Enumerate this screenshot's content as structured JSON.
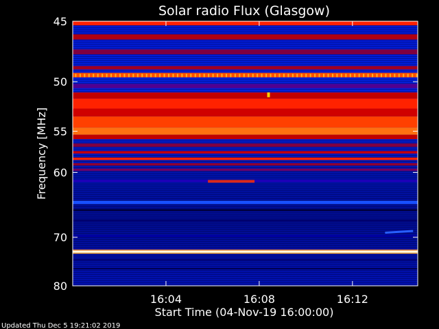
{
  "chart_data": {
    "type": "heatmap",
    "title": "Solar radio Flux (Glasgow)",
    "ylabel": "Frequency [MHz]",
    "xlabel": "Start Time (04-Nov-19 16:00:00)",
    "x_unit": "minutes after 16:00",
    "xlim": [
      0,
      14.8
    ],
    "ylim": [
      80,
      45
    ],
    "x_ticks": [
      {
        "value": 4,
        "label": "16:04"
      },
      {
        "value": 8,
        "label": "16:08"
      },
      {
        "value": 12,
        "label": "16:12"
      }
    ],
    "y_ticks": [
      {
        "value": 45,
        "label": "45"
      },
      {
        "value": 50,
        "label": "50"
      },
      {
        "value": 55,
        "label": "55"
      },
      {
        "value": 60,
        "label": "60"
      },
      {
        "value": 70,
        "label": "70"
      },
      {
        "value": 80,
        "label": "80"
      }
    ],
    "bands": [
      {
        "f0": 45.0,
        "f1": 45.3,
        "color": "#ff2000"
      },
      {
        "f0": 46.0,
        "f1": 46.4,
        "color": "#b00010"
      },
      {
        "f0": 47.2,
        "f1": 47.6,
        "color": "#800040"
      },
      {
        "f0": 48.6,
        "f1": 48.9,
        "color": "#a00020"
      },
      {
        "f0": 49.2,
        "f1": 49.6,
        "color": "#ff5000"
      },
      {
        "f0": 50.2,
        "f1": 50.6,
        "color": "#500090"
      },
      {
        "f0": 51.0,
        "f1": 51.6,
        "color": "#c00000"
      },
      {
        "f0": 51.6,
        "f1": 52.6,
        "color": "#ff2200"
      },
      {
        "f0": 52.6,
        "f1": 53.4,
        "color": "#d00000"
      },
      {
        "f0": 53.4,
        "f1": 54.6,
        "color": "#ff4000"
      },
      {
        "f0": 54.6,
        "f1": 55.4,
        "color": "#ff7010"
      },
      {
        "f0": 55.4,
        "f1": 55.9,
        "color": "#c00000"
      },
      {
        "f0": 56.4,
        "f1": 56.8,
        "color": "#800040"
      },
      {
        "f0": 57.3,
        "f1": 57.6,
        "color": "#c00010"
      },
      {
        "f0": 58.1,
        "f1": 58.4,
        "color": "#ff2000"
      },
      {
        "f0": 58.8,
        "f1": 59.1,
        "color": "#900030"
      },
      {
        "f0": 59.5,
        "f1": 59.8,
        "color": "#700060"
      },
      {
        "f0": 61.0,
        "f1": 61.3,
        "color": "#2000c0"
      },
      {
        "f0": 64.0,
        "f1": 64.5,
        "color": "#1850ff"
      },
      {
        "f0": 65.3,
        "f1": 65.6,
        "color": "#000040"
      },
      {
        "f0": 67.0,
        "f1": 67.3,
        "color": "#00006a"
      },
      {
        "f0": 69.6,
        "f1": 70.0,
        "color": "#0000a0"
      },
      {
        "f0": 72.3,
        "f1": 72.5,
        "color": "#ff9030"
      },
      {
        "f0": 72.5,
        "f1": 72.9,
        "color": "#ffffe0"
      },
      {
        "f0": 72.9,
        "f1": 73.1,
        "color": "#ffb040"
      },
      {
        "f0": 74.2,
        "f1": 74.5,
        "color": "#00006a"
      },
      {
        "f0": 76.0,
        "f1": 76.3,
        "color": "#000050"
      }
    ],
    "features": [
      {
        "type": "burst",
        "t0": 5.8,
        "t1": 7.8,
        "f": 61.2,
        "color": "#ff3000"
      },
      {
        "type": "spot",
        "t": 8.4,
        "f": 51.2,
        "color": "#ffd000"
      },
      {
        "type": "drift",
        "t0": 13.4,
        "t1": 14.6,
        "f0": 69.2,
        "f1": 68.9,
        "color": "#2860ff"
      }
    ],
    "grid": false
  },
  "footer": {
    "updated": "Updated Thu Dec  5 19:21:02 2019"
  }
}
